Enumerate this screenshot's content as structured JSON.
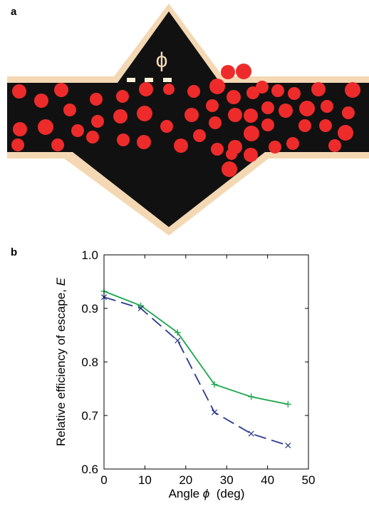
{
  "panels": {
    "a": "a",
    "b": "b"
  },
  "diagram": {
    "angle_symbol": "ϕ",
    "colors": {
      "channel": "#111111",
      "border": "#f4d8b4",
      "particles": "#ee2b2b",
      "marker": "#fff0d6"
    }
  },
  "chart_data": {
    "type": "line",
    "title": "",
    "xlabel_prefix": "Angle ",
    "xlabel_symbol": "ϕ",
    "xlabel_suffix": "  (deg)",
    "ylabel_prefix": "Relative efficiency of escape, ",
    "ylabel_symbol": "E",
    "xlim": [
      0,
      50
    ],
    "ylim": [
      0.6,
      1.0
    ],
    "xticks": [
      0,
      10,
      20,
      30,
      40,
      50
    ],
    "yticks": [
      0.6,
      0.7,
      0.8,
      0.9,
      1.0
    ],
    "xtick_labels": [
      "0",
      "10",
      "20",
      "30",
      "40",
      "50"
    ],
    "ytick_labels": [
      "0.6",
      "0.7",
      "0.8",
      "0.9",
      "1.0"
    ],
    "grid": false,
    "series": [
      {
        "x": [
          0,
          9,
          18,
          27,
          36,
          45
        ],
        "y": [
          0.932,
          0.905,
          0.855,
          0.758,
          0.735,
          0.721
        ],
        "color": "#1aa64a",
        "marker": "+",
        "line": "solid"
      },
      {
        "x": [
          0,
          9,
          18,
          27,
          36,
          45
        ],
        "y": [
          0.921,
          0.9,
          0.84,
          0.706,
          0.666,
          0.644
        ],
        "color": "#2a3a8c",
        "marker": "x",
        "line": "dashed"
      }
    ]
  }
}
